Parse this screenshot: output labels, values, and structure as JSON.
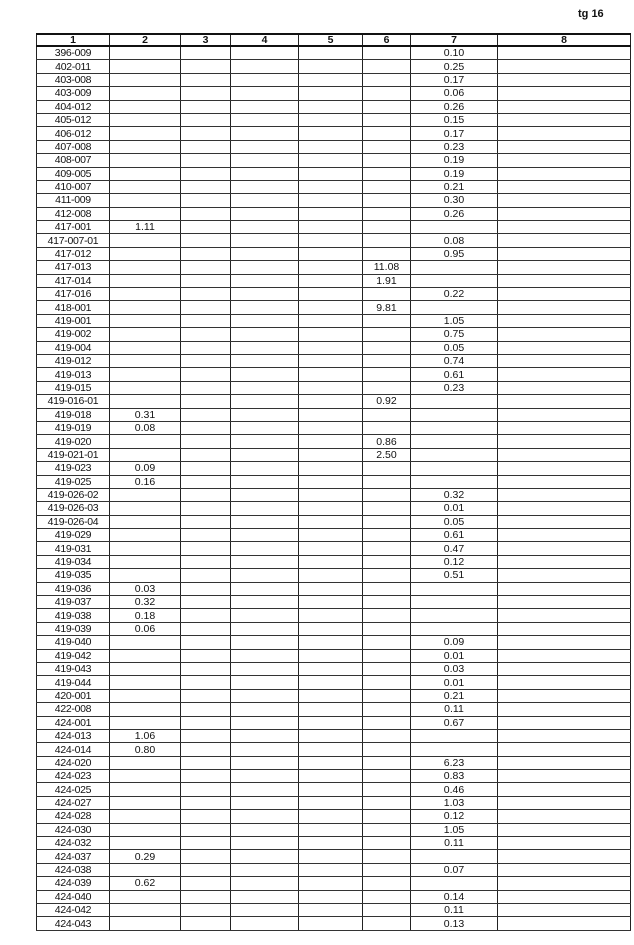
{
  "page_number": "tg 16",
  "columns": [
    "1",
    "2",
    "3",
    "4",
    "5",
    "6",
    "7",
    "8"
  ],
  "rows": [
    {
      "c1": "396-009",
      "c2": "",
      "c6": "",
      "c7": "0.10"
    },
    {
      "c1": "402-011",
      "c2": "",
      "c6": "",
      "c7": "0.25"
    },
    {
      "c1": "403-008",
      "c2": "",
      "c6": "",
      "c7": "0.17"
    },
    {
      "c1": "403-009",
      "c2": "",
      "c6": "",
      "c7": "0.06"
    },
    {
      "c1": "404-012",
      "c2": "",
      "c6": "",
      "c7": "0.26"
    },
    {
      "c1": "405-012",
      "c2": "",
      "c6": "",
      "c7": "0.15"
    },
    {
      "c1": "406-012",
      "c2": "",
      "c6": "",
      "c7": "0.17"
    },
    {
      "c1": "407-008",
      "c2": "",
      "c6": "",
      "c7": "0.23"
    },
    {
      "c1": "408-007",
      "c2": "",
      "c6": "",
      "c7": "0.19"
    },
    {
      "c1": "409-005",
      "c2": "",
      "c6": "",
      "c7": "0.19"
    },
    {
      "c1": "410-007",
      "c2": "",
      "c6": "",
      "c7": "0.21"
    },
    {
      "c1": "411-009",
      "c2": "",
      "c6": "",
      "c7": "0.30"
    },
    {
      "c1": "412-008",
      "c2": "",
      "c6": "",
      "c7": "0.26"
    },
    {
      "c1": "417-001",
      "c2": "1.11",
      "c6": "",
      "c7": ""
    },
    {
      "c1": "417-007-01",
      "c2": "",
      "c6": "",
      "c7": "0.08"
    },
    {
      "c1": "417-012",
      "c2": "",
      "c6": "",
      "c7": "0.95"
    },
    {
      "c1": "417-013",
      "c2": "",
      "c6": "11.08",
      "c7": ""
    },
    {
      "c1": "417-014",
      "c2": "",
      "c6": "1.91",
      "c7": ""
    },
    {
      "c1": "417-016",
      "c2": "",
      "c6": "",
      "c7": "0.22"
    },
    {
      "c1": "418-001",
      "c2": "",
      "c6": "9.81",
      "c7": ""
    },
    {
      "c1": "419-001",
      "c2": "",
      "c6": "",
      "c7": "1.05"
    },
    {
      "c1": "419-002",
      "c2": "",
      "c6": "",
      "c7": "0.75"
    },
    {
      "c1": "419-004",
      "c2": "",
      "c6": "",
      "c7": "0.05"
    },
    {
      "c1": "419-012",
      "c2": "",
      "c6": "",
      "c7": "0.74"
    },
    {
      "c1": "419-013",
      "c2": "",
      "c6": "",
      "c7": "0.61"
    },
    {
      "c1": "419-015",
      "c2": "",
      "c6": "",
      "c7": "0.23"
    },
    {
      "c1": "419-016-01",
      "c2": "",
      "c6": "0.92",
      "c7": ""
    },
    {
      "c1": "419-018",
      "c2": "0.31",
      "c6": "",
      "c7": ""
    },
    {
      "c1": "419-019",
      "c2": "0.08",
      "c6": "",
      "c7": ""
    },
    {
      "c1": "419-020",
      "c2": "",
      "c6": "0.86",
      "c7": ""
    },
    {
      "c1": "419-021-01",
      "c2": "",
      "c6": "2.50",
      "c7": ""
    },
    {
      "c1": "419-023",
      "c2": "0.09",
      "c6": "",
      "c7": ""
    },
    {
      "c1": "419-025",
      "c2": "0.16",
      "c6": "",
      "c7": ""
    },
    {
      "c1": "419-026-02",
      "c2": "",
      "c6": "",
      "c7": "0.32"
    },
    {
      "c1": "419-026-03",
      "c2": "",
      "c6": "",
      "c7": "0.01"
    },
    {
      "c1": "419-026-04",
      "c2": "",
      "c6": "",
      "c7": "0.05"
    },
    {
      "c1": "419-029",
      "c2": "",
      "c6": "",
      "c7": "0.61"
    },
    {
      "c1": "419-031",
      "c2": "",
      "c6": "",
      "c7": "0.47"
    },
    {
      "c1": "419-034",
      "c2": "",
      "c6": "",
      "c7": "0.12"
    },
    {
      "c1": "419-035",
      "c2": "",
      "c6": "",
      "c7": "0.51"
    },
    {
      "c1": "419-036",
      "c2": "0.03",
      "c6": "",
      "c7": ""
    },
    {
      "c1": "419-037",
      "c2": "0.32",
      "c6": "",
      "c7": ""
    },
    {
      "c1": "419-038",
      "c2": "0.18",
      "c6": "",
      "c7": ""
    },
    {
      "c1": "419-039",
      "c2": "0.06",
      "c6": "",
      "c7": ""
    },
    {
      "c1": "419-040",
      "c2": "",
      "c6": "",
      "c7": "0.09"
    },
    {
      "c1": "419-042",
      "c2": "",
      "c6": "",
      "c7": "0.01"
    },
    {
      "c1": "419-043",
      "c2": "",
      "c6": "",
      "c7": "0.03"
    },
    {
      "c1": "419-044",
      "c2": "",
      "c6": "",
      "c7": "0.01"
    },
    {
      "c1": "420-001",
      "c2": "",
      "c6": "",
      "c7": "0.21"
    },
    {
      "c1": "422-008",
      "c2": "",
      "c6": "",
      "c7": "0.11"
    },
    {
      "c1": "424-001",
      "c2": "",
      "c6": "",
      "c7": "0.67"
    },
    {
      "c1": "424-013",
      "c2": "1.06",
      "c6": "",
      "c7": ""
    },
    {
      "c1": "424-014",
      "c2": "0.80",
      "c6": "",
      "c7": ""
    },
    {
      "c1": "424-020",
      "c2": "",
      "c6": "",
      "c7": "6.23"
    },
    {
      "c1": "424-023",
      "c2": "",
      "c6": "",
      "c7": "0.83"
    },
    {
      "c1": "424-025",
      "c2": "",
      "c6": "",
      "c7": "0.46"
    },
    {
      "c1": "424-027",
      "c2": "",
      "c6": "",
      "c7": "1.03"
    },
    {
      "c1": "424-028",
      "c2": "",
      "c6": "",
      "c7": "0.12"
    },
    {
      "c1": "424-030",
      "c2": "",
      "c6": "",
      "c7": "1.05"
    },
    {
      "c1": "424-032",
      "c2": "",
      "c6": "",
      "c7": "0.11"
    },
    {
      "c1": "424-037",
      "c2": "0.29",
      "c6": "",
      "c7": ""
    },
    {
      "c1": "424-038",
      "c2": "",
      "c6": "",
      "c7": "0.07"
    },
    {
      "c1": "424-039",
      "c2": "0.62",
      "c6": "",
      "c7": ""
    },
    {
      "c1": "424-040",
      "c2": "",
      "c6": "",
      "c7": "0.14"
    },
    {
      "c1": "424-042",
      "c2": "",
      "c6": "",
      "c7": "0.11"
    },
    {
      "c1": "424-043",
      "c2": "",
      "c6": "",
      "c7": "0.13"
    }
  ]
}
